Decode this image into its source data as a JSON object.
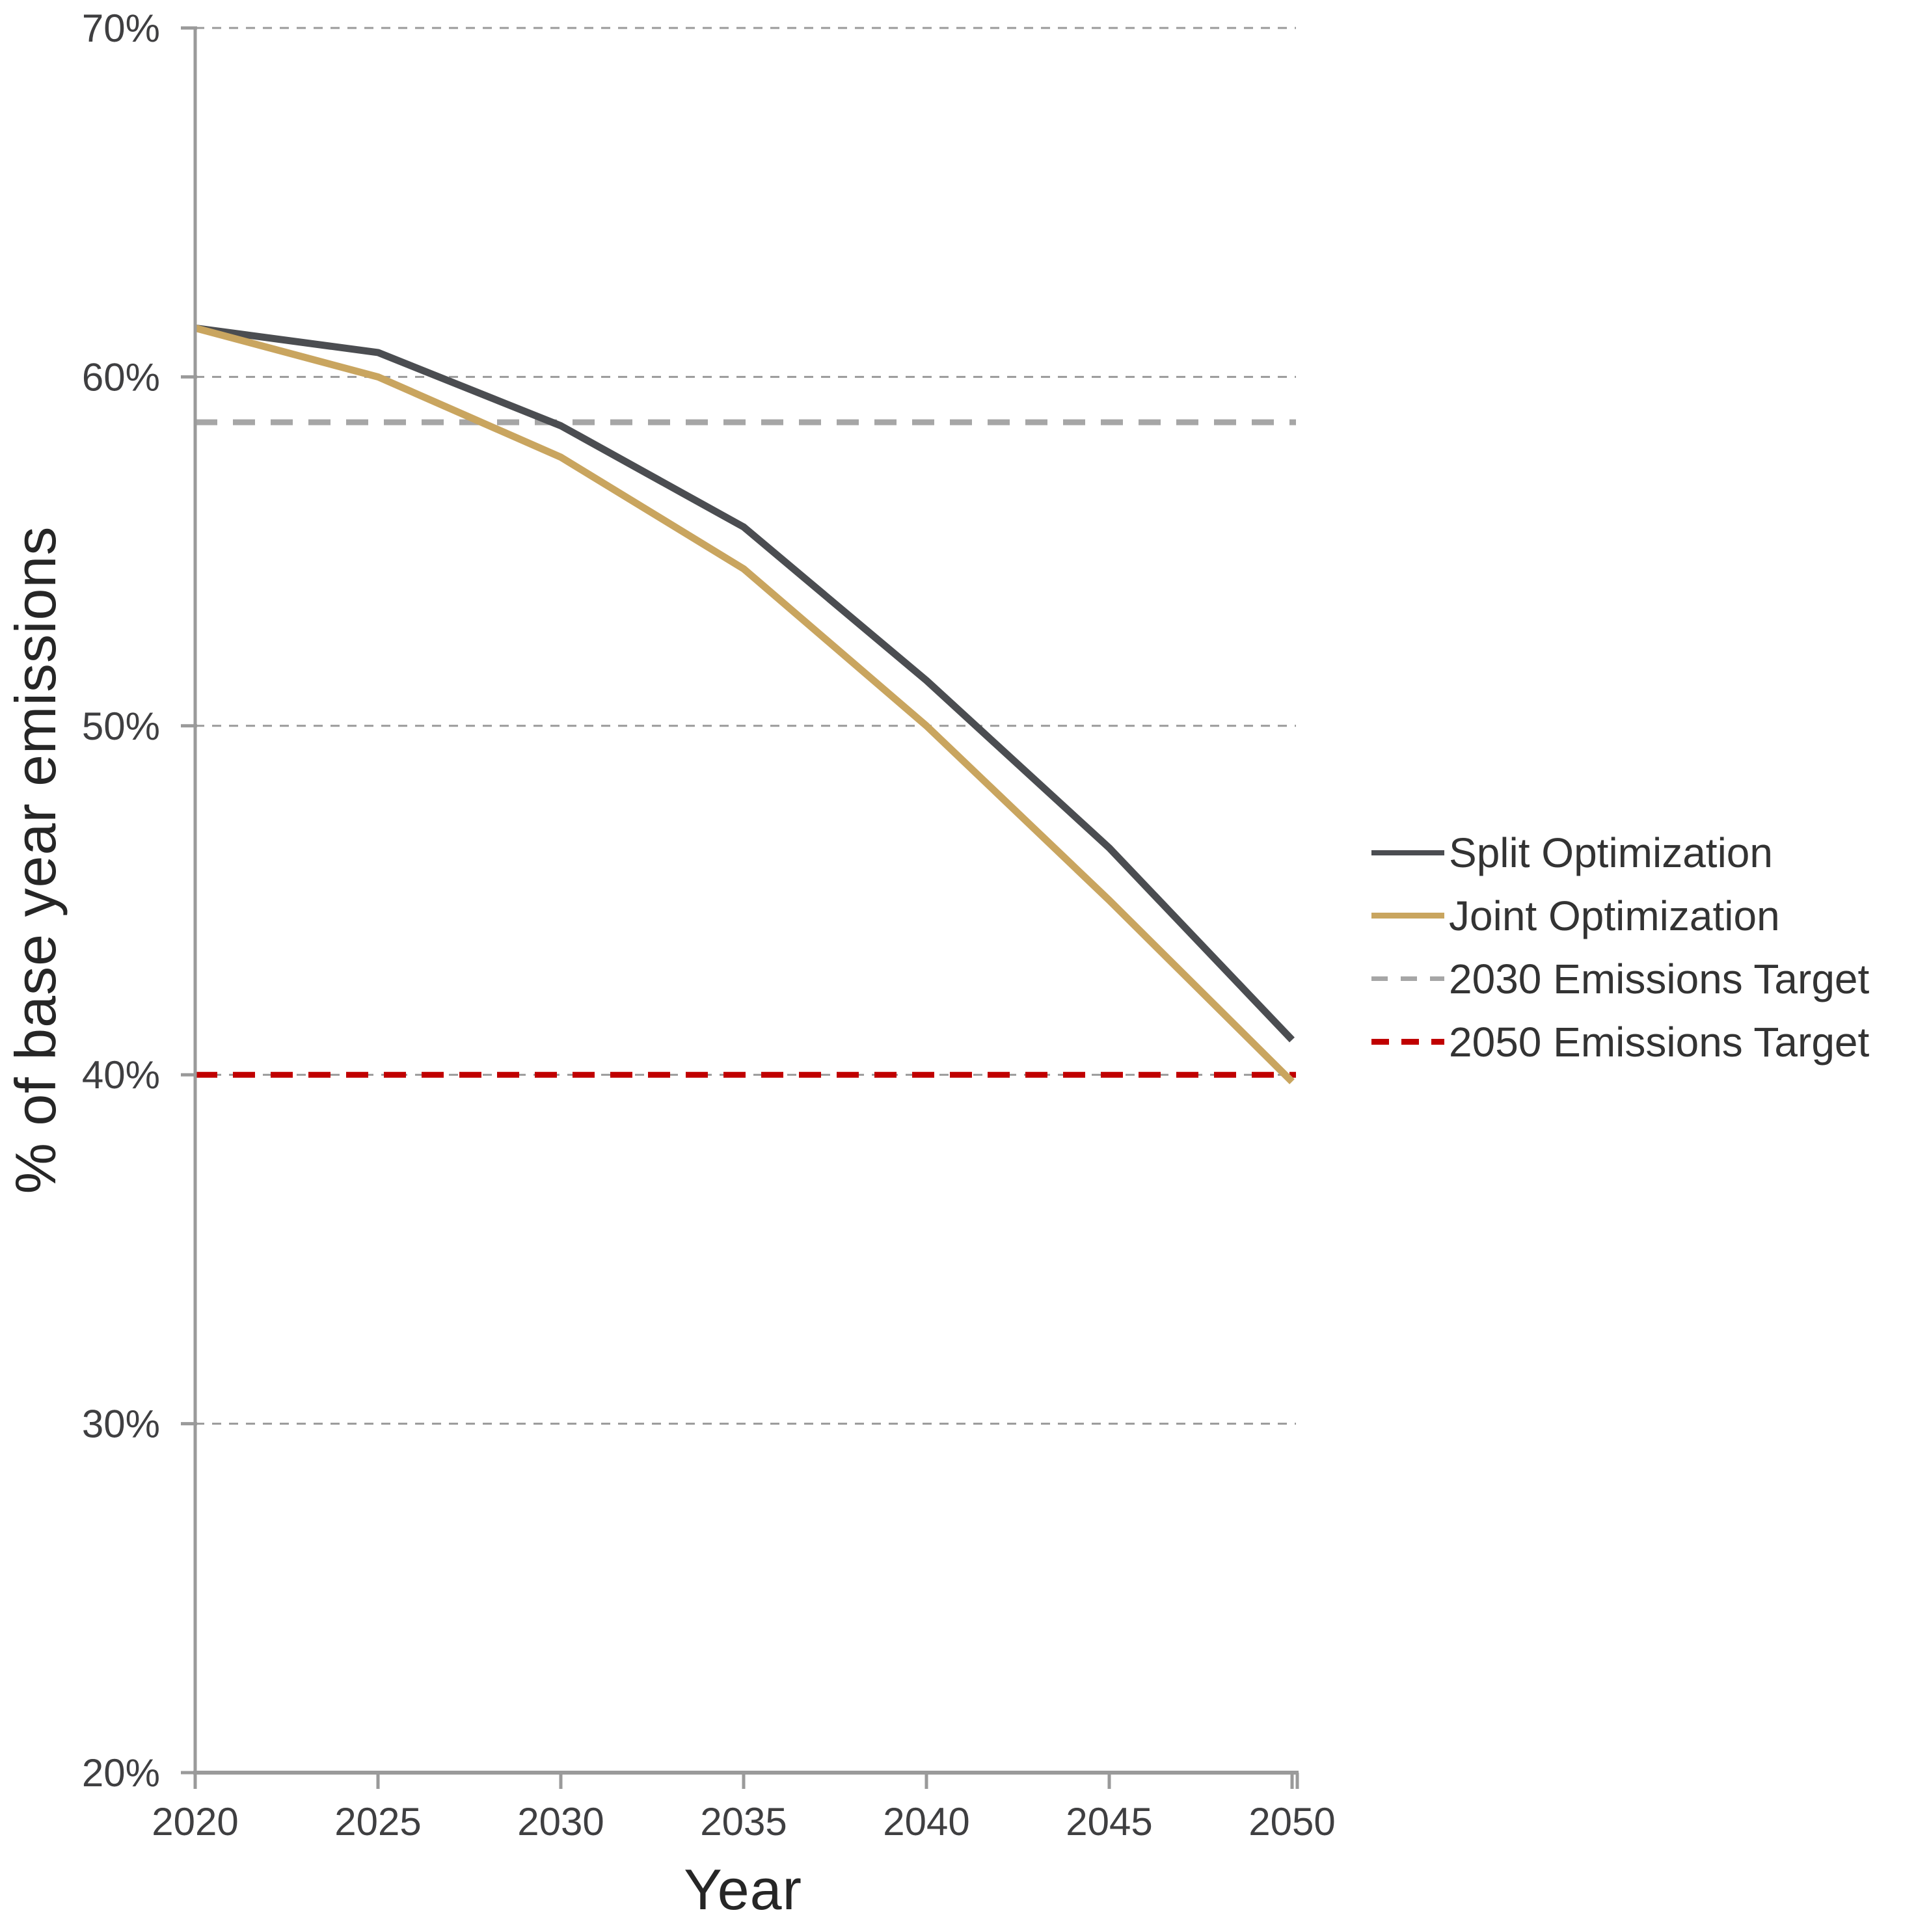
{
  "chart_data": {
    "type": "line",
    "title": "",
    "xlabel": "Year",
    "ylabel": "% of base year emissions",
    "xlim": [
      2020,
      2050
    ],
    "ylim": [
      20,
      70
    ],
    "x": [
      2020,
      2025,
      2030,
      2035,
      2040,
      2045,
      2050
    ],
    "x_tick_labels": [
      "2020",
      "2025",
      "2030",
      "2035",
      "2040",
      "2045",
      "2050"
    ],
    "y_ticks": [
      20,
      30,
      40,
      50,
      60,
      70
    ],
    "y_tick_labels": [
      "20%",
      "30%",
      "40%",
      "50%",
      "60%",
      "70%"
    ],
    "grid": "horizontal dashed gridlines at each 10% tick",
    "legend_position": "right",
    "series": [
      {
        "name": "Split Optimization",
        "style": "solid",
        "color": "#4b4d51",
        "values": [
          61.4,
          60.7,
          58.6,
          55.7,
          51.3,
          46.5,
          41.0
        ]
      },
      {
        "name": "Joint Optimization",
        "style": "solid",
        "color": "#c9a55f",
        "values": [
          61.4,
          60.0,
          57.7,
          54.5,
          50.0,
          45.0,
          39.8
        ]
      }
    ],
    "reference_lines": [
      {
        "name": "2030 Emissions Target",
        "value": 58.7,
        "style": "dashed",
        "color": "#a6a6a6"
      },
      {
        "name": "2050 Emissions Target",
        "value": 40.0,
        "style": "dashed",
        "color": "#c00000"
      }
    ],
    "colors": {
      "gridline": "#9a9a9a",
      "axis": "#9a9a9a",
      "tick_label": "#3f3f41"
    }
  }
}
